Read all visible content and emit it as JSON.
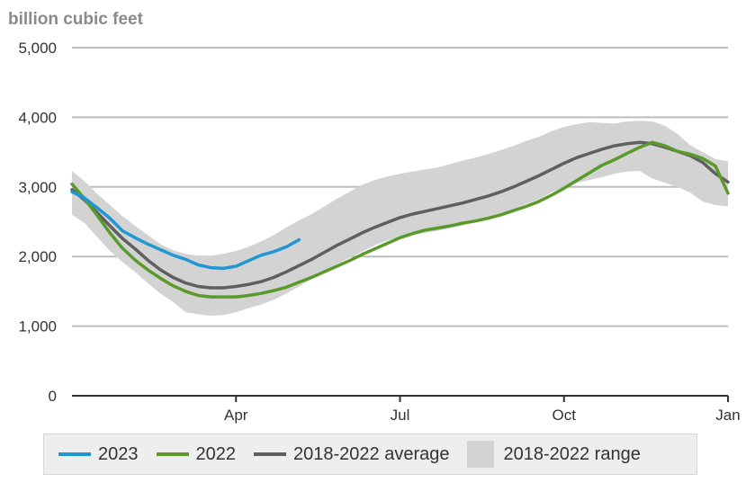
{
  "chart_data": {
    "type": "line",
    "ylabel": "billion cubic feet",
    "ylim": [
      0,
      5000
    ],
    "yticks": [
      0,
      1000,
      2000,
      3000,
      4000,
      5000
    ],
    "ytick_labels": [
      "0",
      "1,000",
      "2,000",
      "3,000",
      "4,000",
      "5,000"
    ],
    "xlim": [
      0,
      52
    ],
    "xticks": [
      13,
      26,
      39,
      52
    ],
    "xtick_labels": [
      "Apr",
      "Jul",
      "Oct",
      "Jan"
    ],
    "grid": true,
    "legend_position": "bottom",
    "colors": {
      "2023": "#1f97d4",
      "2022": "#5a9a2b",
      "average": "#5f5f5f",
      "range": "#d3d3d3",
      "grid": "#bdbdbd",
      "axis": "#333333"
    },
    "series": [
      {
        "name": "2023",
        "x": [
          0,
          1,
          2,
          3,
          4,
          5,
          6,
          7,
          8,
          9,
          10,
          11,
          12,
          13,
          14,
          15,
          16,
          17,
          18
        ],
        "values": [
          2930,
          2840,
          2700,
          2550,
          2370,
          2270,
          2180,
          2100,
          2020,
          1960,
          1880,
          1840,
          1830,
          1860,
          1940,
          2020,
          2070,
          2140,
          2240
        ]
      },
      {
        "name": "2022",
        "x": [
          0,
          1,
          2,
          3,
          4,
          5,
          6,
          7,
          8,
          9,
          10,
          11,
          12,
          13,
          14,
          15,
          16,
          17,
          18,
          19,
          20,
          21,
          22,
          23,
          24,
          25,
          26,
          27,
          28,
          29,
          30,
          31,
          32,
          33,
          34,
          35,
          36,
          37,
          38,
          39,
          40,
          41,
          42,
          43,
          44,
          45,
          46,
          47,
          48,
          49,
          50,
          51,
          52
        ],
        "values": [
          3040,
          2830,
          2590,
          2340,
          2120,
          1950,
          1810,
          1690,
          1580,
          1500,
          1440,
          1420,
          1420,
          1420,
          1440,
          1470,
          1510,
          1560,
          1630,
          1700,
          1780,
          1860,
          1940,
          2030,
          2110,
          2190,
          2270,
          2330,
          2380,
          2410,
          2440,
          2480,
          2510,
          2550,
          2600,
          2660,
          2720,
          2790,
          2880,
          2980,
          3090,
          3200,
          3310,
          3390,
          3480,
          3570,
          3640,
          3590,
          3510,
          3470,
          3410,
          3300,
          2910
        ]
      },
      {
        "name": "2018-2022 average",
        "x": [
          0,
          1,
          2,
          3,
          4,
          5,
          6,
          7,
          8,
          9,
          10,
          11,
          12,
          13,
          14,
          15,
          16,
          17,
          18,
          19,
          20,
          21,
          22,
          23,
          24,
          25,
          26,
          27,
          28,
          29,
          30,
          31,
          32,
          33,
          34,
          35,
          36,
          37,
          38,
          39,
          40,
          41,
          42,
          43,
          44,
          45,
          46,
          47,
          48,
          49,
          50,
          51,
          52
        ],
        "values": [
          2960,
          2810,
          2630,
          2440,
          2260,
          2110,
          1950,
          1810,
          1700,
          1620,
          1570,
          1550,
          1550,
          1570,
          1600,
          1640,
          1700,
          1780,
          1870,
          1960,
          2060,
          2160,
          2250,
          2340,
          2420,
          2490,
          2560,
          2610,
          2650,
          2690,
          2730,
          2770,
          2820,
          2870,
          2930,
          3000,
          3080,
          3160,
          3250,
          3340,
          3420,
          3480,
          3540,
          3590,
          3620,
          3640,
          3620,
          3570,
          3510,
          3450,
          3350,
          3190,
          3070
        ]
      }
    ],
    "range": {
      "name": "2018-2022 range",
      "x": [
        0,
        1,
        2,
        3,
        4,
        5,
        6,
        7,
        8,
        9,
        10,
        11,
        12,
        13,
        14,
        15,
        16,
        17,
        18,
        19,
        20,
        21,
        22,
        23,
        24,
        25,
        26,
        27,
        28,
        29,
        30,
        31,
        32,
        33,
        34,
        35,
        36,
        37,
        38,
        39,
        40,
        41,
        42,
        43,
        44,
        45,
        46,
        47,
        48,
        49,
        50,
        51,
        52
      ],
      "min": [
        2600,
        2480,
        2280,
        2080,
        1920,
        1780,
        1620,
        1470,
        1350,
        1200,
        1170,
        1150,
        1160,
        1200,
        1260,
        1310,
        1380,
        1470,
        1570,
        1680,
        1790,
        1890,
        1980,
        2070,
        2160,
        2230,
        2280,
        2310,
        2340,
        2370,
        2410,
        2450,
        2500,
        2550,
        2610,
        2680,
        2750,
        2820,
        2920,
        3000,
        3060,
        3100,
        3140,
        3190,
        3220,
        3230,
        3120,
        3060,
        3000,
        2920,
        2790,
        2740,
        2720
      ],
      "max": [
        3230,
        3080,
        2900,
        2740,
        2580,
        2440,
        2310,
        2180,
        2090,
        2040,
        2010,
        2010,
        2040,
        2080,
        2140,
        2220,
        2310,
        2420,
        2520,
        2610,
        2720,
        2830,
        2930,
        3030,
        3100,
        3150,
        3190,
        3220,
        3250,
        3280,
        3330,
        3380,
        3420,
        3470,
        3530,
        3590,
        3660,
        3720,
        3800,
        3860,
        3900,
        3930,
        3920,
        3910,
        3940,
        3950,
        3940,
        3880,
        3760,
        3600,
        3500,
        3400,
        3370
      ]
    },
    "legend": [
      "2023",
      "2022",
      "2018-2022 average",
      "2018-2022 range"
    ]
  }
}
